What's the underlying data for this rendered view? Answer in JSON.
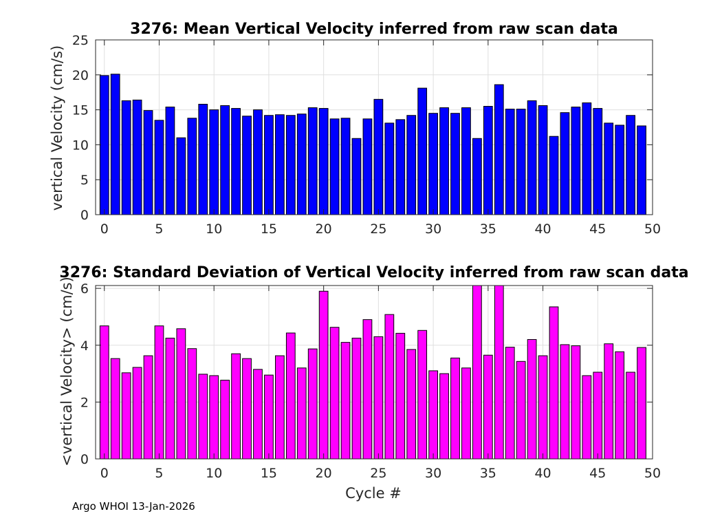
{
  "footer": "Argo WHOI 13-Jan-2026",
  "chart_data": [
    {
      "type": "bar",
      "title": "3276: Mean Vertical Velocity inferred from raw scan data",
      "xlabel": "",
      "ylabel": "vertical Velocity (cm/s)",
      "xlim": [
        -0.8,
        50
      ],
      "ylim": [
        0,
        25
      ],
      "xticks": [
        0,
        5,
        10,
        15,
        20,
        25,
        30,
        35,
        40,
        45,
        50
      ],
      "yticks": [
        0,
        5,
        10,
        15,
        20,
        25
      ],
      "grid": true,
      "color": "#0000ff",
      "x": [
        0,
        1,
        2,
        3,
        4,
        5,
        6,
        7,
        8,
        9,
        10,
        11,
        12,
        13,
        14,
        15,
        16,
        17,
        18,
        19,
        20,
        21,
        22,
        23,
        24,
        25,
        26,
        27,
        28,
        29,
        30,
        31,
        32,
        33,
        34,
        35,
        36,
        37,
        38,
        39,
        40,
        41,
        42,
        43,
        44,
        45,
        46,
        47,
        48,
        49
      ],
      "values": [
        19.9,
        20.1,
        16.3,
        16.4,
        14.9,
        13.5,
        15.4,
        11.0,
        13.8,
        15.8,
        15.0,
        15.6,
        15.2,
        14.1,
        15.0,
        14.2,
        14.3,
        14.2,
        14.4,
        15.3,
        15.2,
        13.7,
        13.8,
        10.9,
        13.7,
        16.5,
        13.1,
        13.6,
        14.2,
        18.1,
        14.5,
        15.3,
        14.5,
        15.3,
        10.9,
        15.5,
        18.6,
        15.1,
        15.1,
        16.3,
        15.6,
        11.2,
        14.6,
        15.4,
        16.0,
        15.2,
        13.1,
        12.8,
        14.2,
        12.7
      ]
    },
    {
      "type": "bar",
      "title": "3276: Standard Deviation of Vertical Velocity inferred from raw scan data",
      "xlabel": "Cycle #",
      "ylabel": "<vertical Velocity> (cm/s)",
      "xlim": [
        -0.8,
        50
      ],
      "ylim": [
        0,
        6.1
      ],
      "xticks": [
        0,
        5,
        10,
        15,
        20,
        25,
        30,
        35,
        40,
        45,
        50
      ],
      "yticks": [
        0,
        2,
        4,
        6
      ],
      "grid": true,
      "color": "#ff00ff",
      "x": [
        0,
        1,
        2,
        3,
        4,
        5,
        6,
        7,
        8,
        9,
        10,
        11,
        12,
        13,
        14,
        15,
        16,
        17,
        18,
        19,
        20,
        21,
        22,
        23,
        24,
        25,
        26,
        27,
        28,
        29,
        30,
        31,
        32,
        33,
        34,
        35,
        36,
        37,
        38,
        39,
        40,
        41,
        42,
        43,
        44,
        45,
        46,
        47,
        48,
        49
      ],
      "values": [
        4.68,
        3.53,
        3.03,
        3.22,
        3.63,
        4.68,
        4.25,
        4.58,
        3.88,
        2.98,
        2.93,
        2.77,
        3.7,
        3.53,
        3.15,
        2.95,
        3.63,
        4.43,
        3.2,
        3.87,
        5.9,
        4.63,
        4.1,
        4.25,
        4.9,
        4.3,
        5.08,
        4.42,
        3.85,
        4.52,
        3.1,
        3.0,
        3.55,
        3.2,
        6.1,
        3.65,
        6.1,
        3.93,
        3.43,
        4.2,
        3.63,
        5.35,
        4.02,
        3.98,
        2.93,
        3.05,
        4.05,
        3.77,
        3.05,
        3.92
      ]
    }
  ]
}
